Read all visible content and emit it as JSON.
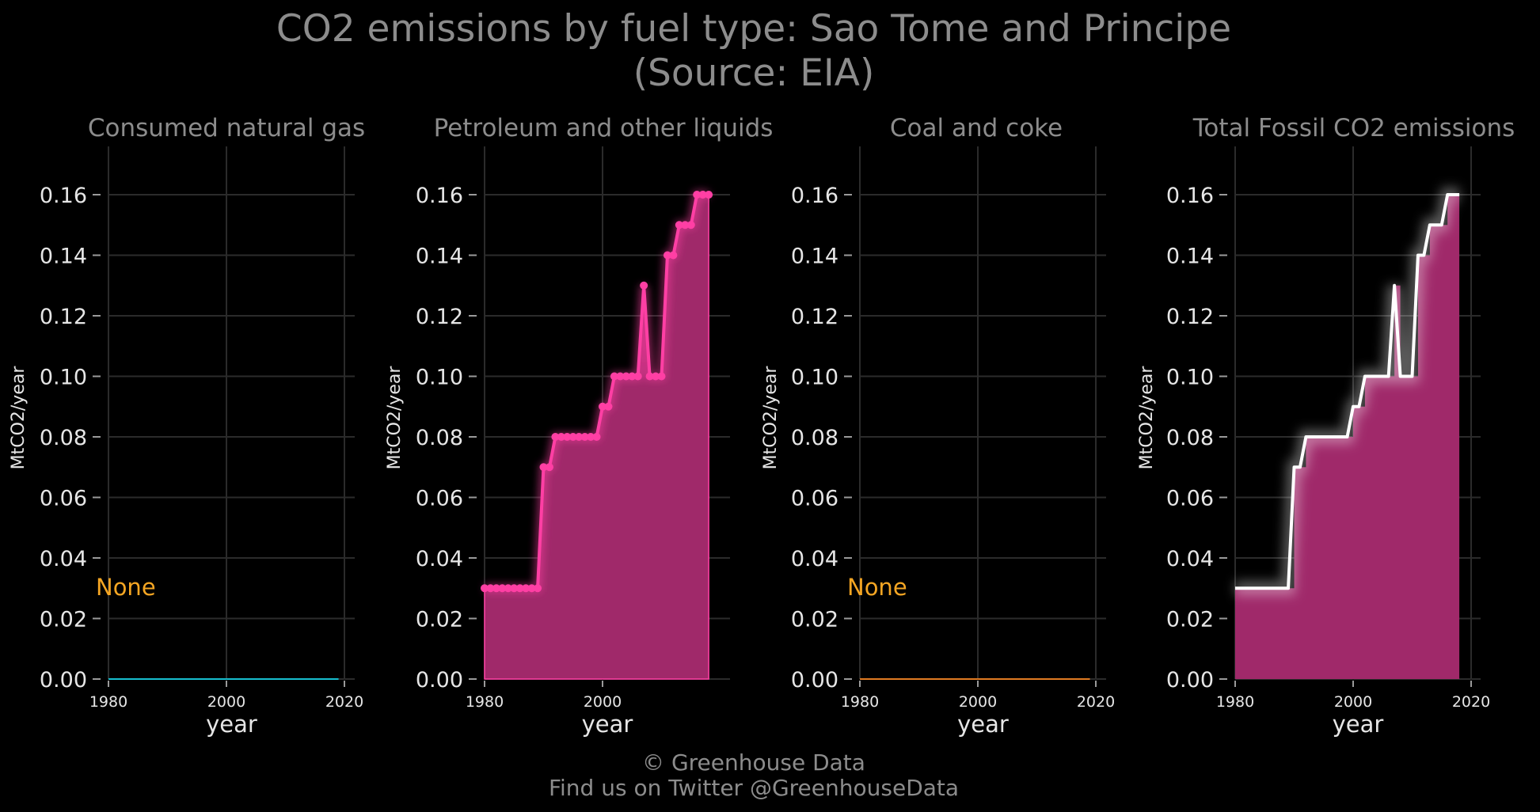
{
  "figure": {
    "title_line1": "CO2 emissions by fuel type: Sao Tome and Principe",
    "title_line2": "(Source: EIA)",
    "credit_line1": "© Greenhouse Data",
    "credit_line2": "Find us on Twitter @GreenhouseData"
  },
  "colors": {
    "background": "#000000",
    "natural_gas": "#17becf",
    "petroleum": "#ff3fa4",
    "petroleum_fill": "#a0296a",
    "coal": "#e07b22",
    "total_line": "#ffffff",
    "none_label": "#f5a623"
  },
  "chart_data": [
    {
      "type": "line",
      "title": "Consumed natural gas",
      "xlabel": "year",
      "ylabel": "MtCO2/year",
      "xlim": [
        1980,
        2020
      ],
      "ylim": [
        0,
        0.175
      ],
      "x_ticks": [
        "1980",
        "2000",
        "2020"
      ],
      "y_ticks": [
        "0.00",
        "0.02",
        "0.04",
        "0.06",
        "0.08",
        "0.10",
        "0.12",
        "0.14",
        "0.16"
      ],
      "grid": true,
      "annotation": "None",
      "series": [
        {
          "x": [
            1980,
            2019
          ],
          "y": [
            0,
            0
          ]
        }
      ]
    },
    {
      "type": "area",
      "title": "Petroleum and other liquids",
      "xlabel": "year",
      "ylabel": "MtCO2/year",
      "xlim": [
        1980,
        2020
      ],
      "ylim": [
        0,
        0.175
      ],
      "x_ticks": [
        "1980",
        "2000"
      ],
      "y_ticks": [
        "0.00",
        "0.02",
        "0.04",
        "0.06",
        "0.08",
        "0.10",
        "0.12",
        "0.14",
        "0.16"
      ],
      "grid": true,
      "series": [
        {
          "x": [
            1980,
            1981,
            1982,
            1983,
            1984,
            1985,
            1986,
            1987,
            1988,
            1989,
            1990,
            1991,
            1992,
            1993,
            1994,
            1995,
            1996,
            1997,
            1998,
            1999,
            2000,
            2001,
            2002,
            2003,
            2004,
            2005,
            2006,
            2007,
            2008,
            2009,
            2010,
            2011,
            2012,
            2013,
            2014,
            2015,
            2016,
            2017,
            2018
          ],
          "y": [
            0.03,
            0.03,
            0.03,
            0.03,
            0.03,
            0.03,
            0.03,
            0.03,
            0.03,
            0.03,
            0.07,
            0.07,
            0.08,
            0.08,
            0.08,
            0.08,
            0.08,
            0.08,
            0.08,
            0.08,
            0.09,
            0.09,
            0.1,
            0.1,
            0.1,
            0.1,
            0.1,
            0.13,
            0.1,
            0.1,
            0.1,
            0.14,
            0.14,
            0.15,
            0.15,
            0.15,
            0.16,
            0.16,
            0.16
          ]
        }
      ]
    },
    {
      "type": "line",
      "title": "Coal and coke",
      "xlabel": "year",
      "ylabel": "MtCO2/year",
      "xlim": [
        1980,
        2020
      ],
      "ylim": [
        0,
        0.175
      ],
      "x_ticks": [
        "1980",
        "2000",
        "2020"
      ],
      "y_ticks": [
        "0.00",
        "0.02",
        "0.04",
        "0.06",
        "0.08",
        "0.10",
        "0.12",
        "0.14",
        "0.16"
      ],
      "grid": true,
      "annotation": "None",
      "series": [
        {
          "x": [
            1980,
            2019
          ],
          "y": [
            0,
            0
          ]
        }
      ]
    },
    {
      "type": "area",
      "title": "Total Fossil CO2 emissions",
      "xlabel": "year",
      "ylabel": "MtCO2/year",
      "xlim": [
        1980,
        2020
      ],
      "ylim": [
        0,
        0.175
      ],
      "x_ticks": [
        "1980",
        "2000",
        "2020"
      ],
      "y_ticks": [
        "0.00",
        "0.02",
        "0.04",
        "0.06",
        "0.08",
        "0.10",
        "0.12",
        "0.14",
        "0.16"
      ],
      "grid": true,
      "series": [
        {
          "x": [
            1980,
            1981,
            1982,
            1983,
            1984,
            1985,
            1986,
            1987,
            1988,
            1989,
            1990,
            1991,
            1992,
            1993,
            1994,
            1995,
            1996,
            1997,
            1998,
            1999,
            2000,
            2001,
            2002,
            2003,
            2004,
            2005,
            2006,
            2007,
            2008,
            2009,
            2010,
            2011,
            2012,
            2013,
            2014,
            2015,
            2016,
            2017,
            2018
          ],
          "y": [
            0.03,
            0.03,
            0.03,
            0.03,
            0.03,
            0.03,
            0.03,
            0.03,
            0.03,
            0.03,
            0.07,
            0.07,
            0.08,
            0.08,
            0.08,
            0.08,
            0.08,
            0.08,
            0.08,
            0.08,
            0.09,
            0.09,
            0.1,
            0.1,
            0.1,
            0.1,
            0.1,
            0.13,
            0.1,
            0.1,
            0.1,
            0.14,
            0.14,
            0.15,
            0.15,
            0.15,
            0.16,
            0.16,
            0.16
          ]
        }
      ]
    }
  ]
}
